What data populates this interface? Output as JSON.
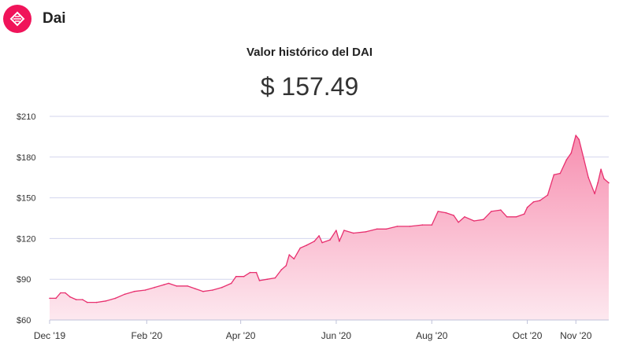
{
  "coin": {
    "name": "Dai",
    "logo_icon": "dai-diamond-icon",
    "brand_color": "#f0145a"
  },
  "chart_title": "Valor histórico del DAI",
  "current_value": "$ 157.49",
  "colors": {
    "line": "#e8306f",
    "fill_top": "#f78fb0",
    "fill_bottom": "#fde8ef",
    "grid": "#d3d6ee"
  },
  "chart_data": {
    "type": "area",
    "ylim": [
      60,
      210
    ],
    "y_ticks": [
      {
        "value": 60,
        "label": "$60"
      },
      {
        "value": 90,
        "label": "$90"
      },
      {
        "value": 120,
        "label": "$120"
      },
      {
        "value": 150,
        "label": "$150"
      },
      {
        "value": 180,
        "label": "$180"
      },
      {
        "value": 210,
        "label": "$210"
      }
    ],
    "x_range": [
      "2019-12-01",
      "2020-11-22"
    ],
    "x_ticks": [
      {
        "date": "2019-12-01",
        "label": "Dec '19"
      },
      {
        "date": "2020-02-01",
        "label": "Feb '20"
      },
      {
        "date": "2020-04-01",
        "label": "Apr '20"
      },
      {
        "date": "2020-06-01",
        "label": "Jun '20"
      },
      {
        "date": "2020-08-01",
        "label": "Aug '20"
      },
      {
        "date": "2020-10-01",
        "label": "Oct '20"
      },
      {
        "date": "2020-11-01",
        "label": "Nov '20"
      }
    ],
    "grid": true,
    "series": [
      {
        "points": [
          [
            "2019-12-01",
            76
          ],
          [
            "2019-12-05",
            76
          ],
          [
            "2019-12-08",
            80
          ],
          [
            "2019-12-11",
            80
          ],
          [
            "2019-12-14",
            77
          ],
          [
            "2019-12-18",
            75
          ],
          [
            "2019-12-22",
            75
          ],
          [
            "2019-12-25",
            73
          ],
          [
            "2019-12-31",
            73
          ],
          [
            "2020-01-06",
            74
          ],
          [
            "2020-01-12",
            76
          ],
          [
            "2020-01-18",
            79
          ],
          [
            "2020-01-24",
            81
          ],
          [
            "2020-01-31",
            82
          ],
          [
            "2020-02-06",
            84
          ],
          [
            "2020-02-12",
            86
          ],
          [
            "2020-02-15",
            87
          ],
          [
            "2020-02-20",
            85
          ],
          [
            "2020-02-27",
            85
          ],
          [
            "2020-03-03",
            83
          ],
          [
            "2020-03-08",
            81
          ],
          [
            "2020-03-14",
            82
          ],
          [
            "2020-03-20",
            84
          ],
          [
            "2020-03-26",
            87
          ],
          [
            "2020-03-29",
            92
          ],
          [
            "2020-04-03",
            92
          ],
          [
            "2020-04-07",
            95
          ],
          [
            "2020-04-11",
            95
          ],
          [
            "2020-04-13",
            89
          ],
          [
            "2020-04-18",
            90
          ],
          [
            "2020-04-23",
            91
          ],
          [
            "2020-04-27",
            97
          ],
          [
            "2020-04-30",
            100
          ],
          [
            "2020-05-02",
            108
          ],
          [
            "2020-05-05",
            105
          ],
          [
            "2020-05-09",
            113
          ],
          [
            "2020-05-13",
            115
          ],
          [
            "2020-05-18",
            118
          ],
          [
            "2020-05-21",
            122
          ],
          [
            "2020-05-23",
            117
          ],
          [
            "2020-05-28",
            119
          ],
          [
            "2020-06-01",
            126
          ],
          [
            "2020-06-03",
            118
          ],
          [
            "2020-06-06",
            126
          ],
          [
            "2020-06-12",
            124
          ],
          [
            "2020-06-20",
            125
          ],
          [
            "2020-06-27",
            127
          ],
          [
            "2020-07-03",
            127
          ],
          [
            "2020-07-10",
            129
          ],
          [
            "2020-07-18",
            129
          ],
          [
            "2020-07-26",
            130
          ],
          [
            "2020-08-01",
            130
          ],
          [
            "2020-08-05",
            140
          ],
          [
            "2020-08-10",
            139
          ],
          [
            "2020-08-15",
            137
          ],
          [
            "2020-08-18",
            132
          ],
          [
            "2020-08-22",
            136
          ],
          [
            "2020-08-28",
            133
          ],
          [
            "2020-09-03",
            134
          ],
          [
            "2020-09-08",
            140
          ],
          [
            "2020-09-14",
            141
          ],
          [
            "2020-09-18",
            136
          ],
          [
            "2020-09-24",
            136
          ],
          [
            "2020-09-29",
            138
          ],
          [
            "2020-10-01",
            143
          ],
          [
            "2020-10-05",
            147
          ],
          [
            "2020-10-09",
            148
          ],
          [
            "2020-10-14",
            152
          ],
          [
            "2020-10-18",
            167
          ],
          [
            "2020-10-22",
            168
          ],
          [
            "2020-10-26",
            178
          ],
          [
            "2020-10-29",
            183
          ],
          [
            "2020-11-01",
            196
          ],
          [
            "2020-11-03",
            193
          ],
          [
            "2020-11-06",
            179
          ],
          [
            "2020-11-09",
            165
          ],
          [
            "2020-11-13",
            153
          ],
          [
            "2020-11-15",
            161
          ],
          [
            "2020-11-17",
            171
          ],
          [
            "2020-11-19",
            164
          ],
          [
            "2020-11-22",
            161
          ]
        ]
      }
    ]
  }
}
